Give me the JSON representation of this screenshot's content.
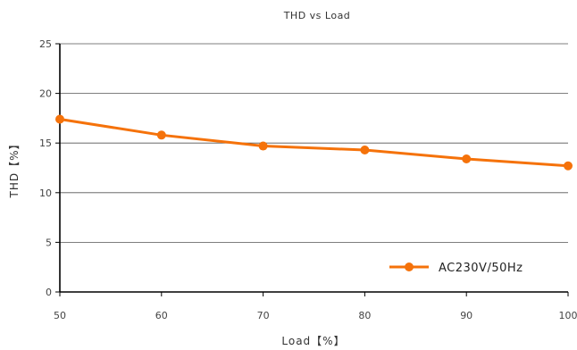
{
  "chart_data": {
    "type": "line",
    "title": "THD vs Load",
    "xlabel": "Load【%】",
    "ylabel": "THD【%】",
    "xlim": [
      50,
      100
    ],
    "ylim": [
      0,
      25
    ],
    "x_ticks": [
      "50",
      "60",
      "70",
      "80",
      "90",
      "100"
    ],
    "y_ticks": [
      "0",
      "5",
      "10",
      "15",
      "20",
      "25"
    ],
    "grid": "horizontal",
    "legend_position": "bottom-right",
    "series": [
      {
        "name": "AC230V/50Hz",
        "color": "#F5720A",
        "x": [
          50,
          60,
          70,
          80,
          90,
          100
        ],
        "y": [
          17.4,
          15.8,
          14.7,
          14.3,
          13.4,
          12.7
        ]
      }
    ]
  }
}
